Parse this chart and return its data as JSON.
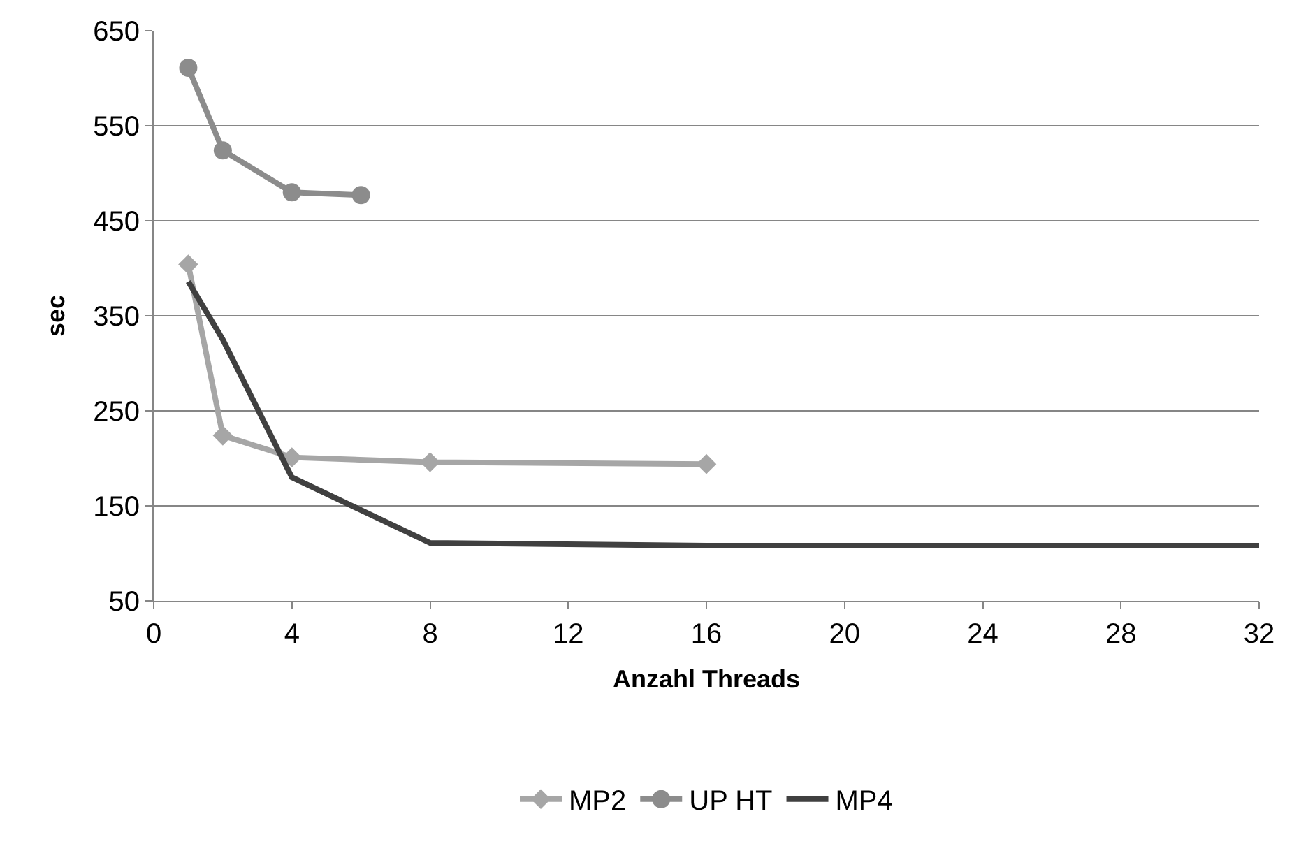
{
  "chart_data": {
    "type": "line",
    "xlabel": "Anzahl Threads",
    "ylabel": "sec",
    "xlim": [
      0,
      32
    ],
    "xticks": [
      0,
      4,
      8,
      12,
      16,
      20,
      24,
      28,
      32
    ],
    "ylim": [
      50,
      650
    ],
    "yticks": [
      50,
      150,
      250,
      350,
      450,
      550,
      650
    ],
    "grid": "y",
    "legend": "bottom",
    "series": [
      {
        "name": "MP2",
        "color": "#a6a6a6",
        "marker": "diamond",
        "x": [
          1,
          2,
          4,
          8,
          16
        ],
        "values": [
          404,
          224,
          201,
          196,
          194
        ]
      },
      {
        "name": "UP HT",
        "color": "#8c8c8c",
        "marker": "circle",
        "x": [
          1,
          2,
          4,
          6
        ],
        "values": [
          611,
          524,
          480,
          477
        ]
      },
      {
        "name": "MP4",
        "color": "#404040",
        "marker": "none",
        "x": [
          1,
          2,
          4,
          8,
          16,
          32
        ],
        "values": [
          386,
          325,
          180,
          111,
          108,
          108
        ]
      }
    ]
  }
}
